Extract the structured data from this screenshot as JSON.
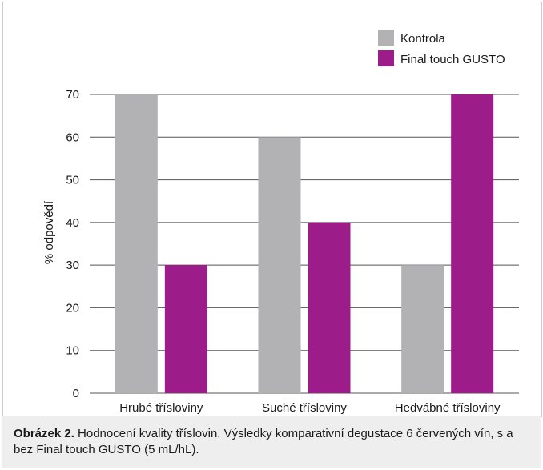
{
  "chart_data": {
    "type": "bar",
    "categories": [
      "Hrubé třísloviny",
      "Suché třísloviny",
      "Hedvábné třísloviny"
    ],
    "series": [
      {
        "name": "Kontrola",
        "values": [
          70,
          60,
          30
        ],
        "color": "#b2b2b4"
      },
      {
        "name": "Final touch GUSTO",
        "values": [
          30,
          40,
          70
        ],
        "color": "#9c1c8a"
      }
    ],
    "title": "",
    "xlabel": "",
    "ylabel": "% odpovědí",
    "ylim": [
      0,
      70
    ],
    "yticks": [
      0,
      10,
      20,
      30,
      40,
      50,
      60,
      70
    ],
    "grid": true,
    "legend_position": "top-right"
  },
  "caption": {
    "label": "Obrázek 2.",
    "text": " Hodnocení kvality tříslovin. Výsledky komparativní degustace 6 červených vín, s a bez Final touch GUSTO (5 mL/hL)."
  }
}
